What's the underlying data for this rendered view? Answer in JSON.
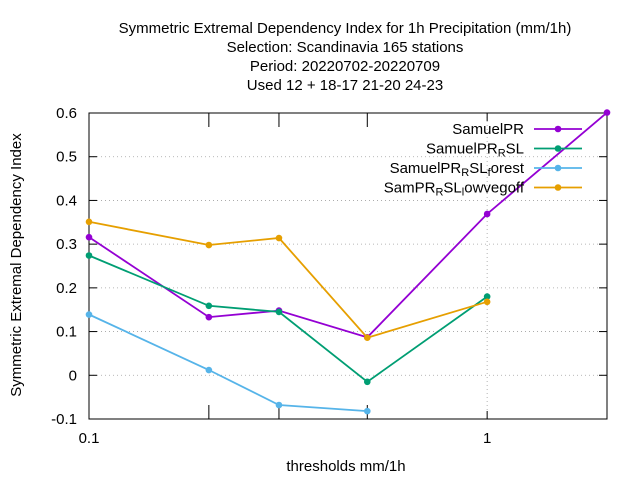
{
  "chart_data": {
    "type": "line",
    "title_lines": [
      "Symmetric Extremal Dependency Index  for 1h Precipitation (mm/1h)",
      "Selection: Scandinavia    165 stations",
      "Period: 20220702-20220709",
      "Used  12 + 18-17 21-20 24-23"
    ],
    "xlabel": "thresholds mm/1h",
    "ylabel": "Symmetric Extremal Dependency Index",
    "xscale": "log",
    "xlim": [
      0.1,
      2
    ],
    "ylim": [
      -0.1,
      0.6
    ],
    "xticks": [
      0.1,
      0.2,
      0.3,
      0.5,
      1,
      2
    ],
    "xtick_labels": [
      {
        "value": 0.1,
        "label": "0.1"
      },
      {
        "value": 1,
        "label": "1"
      }
    ],
    "yticks": [
      -0.1,
      0,
      0.1,
      0.2,
      0.3,
      0.4,
      0.5,
      0.6
    ],
    "ytick_labels": [
      "-0.1",
      "0",
      "0.1",
      "0.2",
      "0.3",
      "0.4",
      "0.5",
      "0.6"
    ],
    "grid": true,
    "legend_position": "top-right",
    "series": [
      {
        "name": "SamuelPR",
        "legend": {
          "base": "SamuelPR",
          "sub": "",
          "tail": ""
        },
        "color": "#9400d3",
        "x": [
          0.1,
          0.2,
          0.3,
          0.5,
          1,
          2
        ],
        "y": [
          0.316,
          0.133,
          0.148,
          0.087,
          0.369,
          0.601
        ]
      },
      {
        "name": "SamuelPR_RSL",
        "legend": {
          "base": "SamuelPR",
          "sub": "R",
          "tail": "SL"
        },
        "color": "#009e73",
        "x": [
          0.1,
          0.2,
          0.3,
          0.5,
          1
        ],
        "y": [
          0.274,
          0.159,
          0.145,
          -0.015,
          0.18
        ]
      },
      {
        "name": "SamuelPR_RSL_forest",
        "legend": {
          "base": "SamuelPR",
          "sub": "R",
          "tail": "SL",
          "sub2": "f",
          "tail2": "orest"
        },
        "color": "#56b4e9",
        "x": [
          0.1,
          0.2,
          0.3,
          0.5
        ],
        "y": [
          0.139,
          0.012,
          -0.068,
          -0.082
        ]
      },
      {
        "name": "SamPR_RSL_lowvegoff",
        "legend": {
          "base": "SamPR",
          "sub": "R",
          "tail": "SL",
          "sub2": "l",
          "tail2": "owvegoff"
        },
        "color": "#e69f00",
        "x": [
          0.1,
          0.2,
          0.3,
          0.5,
          1
        ],
        "y": [
          0.351,
          0.298,
          0.314,
          0.086,
          0.168
        ]
      }
    ]
  }
}
